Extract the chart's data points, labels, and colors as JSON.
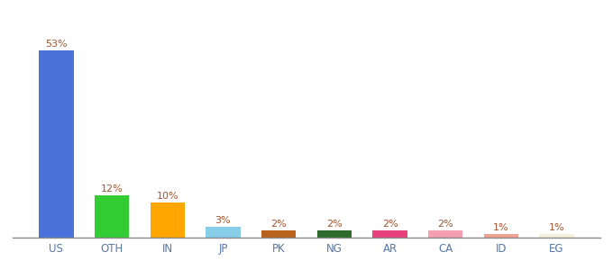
{
  "categories": [
    "US",
    "OTH",
    "IN",
    "JP",
    "PK",
    "NG",
    "AR",
    "CA",
    "ID",
    "EG"
  ],
  "values": [
    53,
    12,
    10,
    3,
    2,
    2,
    2,
    2,
    1,
    1
  ],
  "bar_colors": [
    "#4a72d9",
    "#33cc33",
    "#ffa500",
    "#87ceeb",
    "#b8621b",
    "#2d6b2d",
    "#e8417c",
    "#f4a0b0",
    "#f0a090",
    "#f5f0dc"
  ],
  "label_color": "#a0522d",
  "background_color": "#ffffff",
  "ylim": [
    0,
    58
  ],
  "bar_width": 0.62,
  "label_fontsize": 8.0,
  "tick_fontsize": 8.5,
  "tick_color": "#5577aa"
}
